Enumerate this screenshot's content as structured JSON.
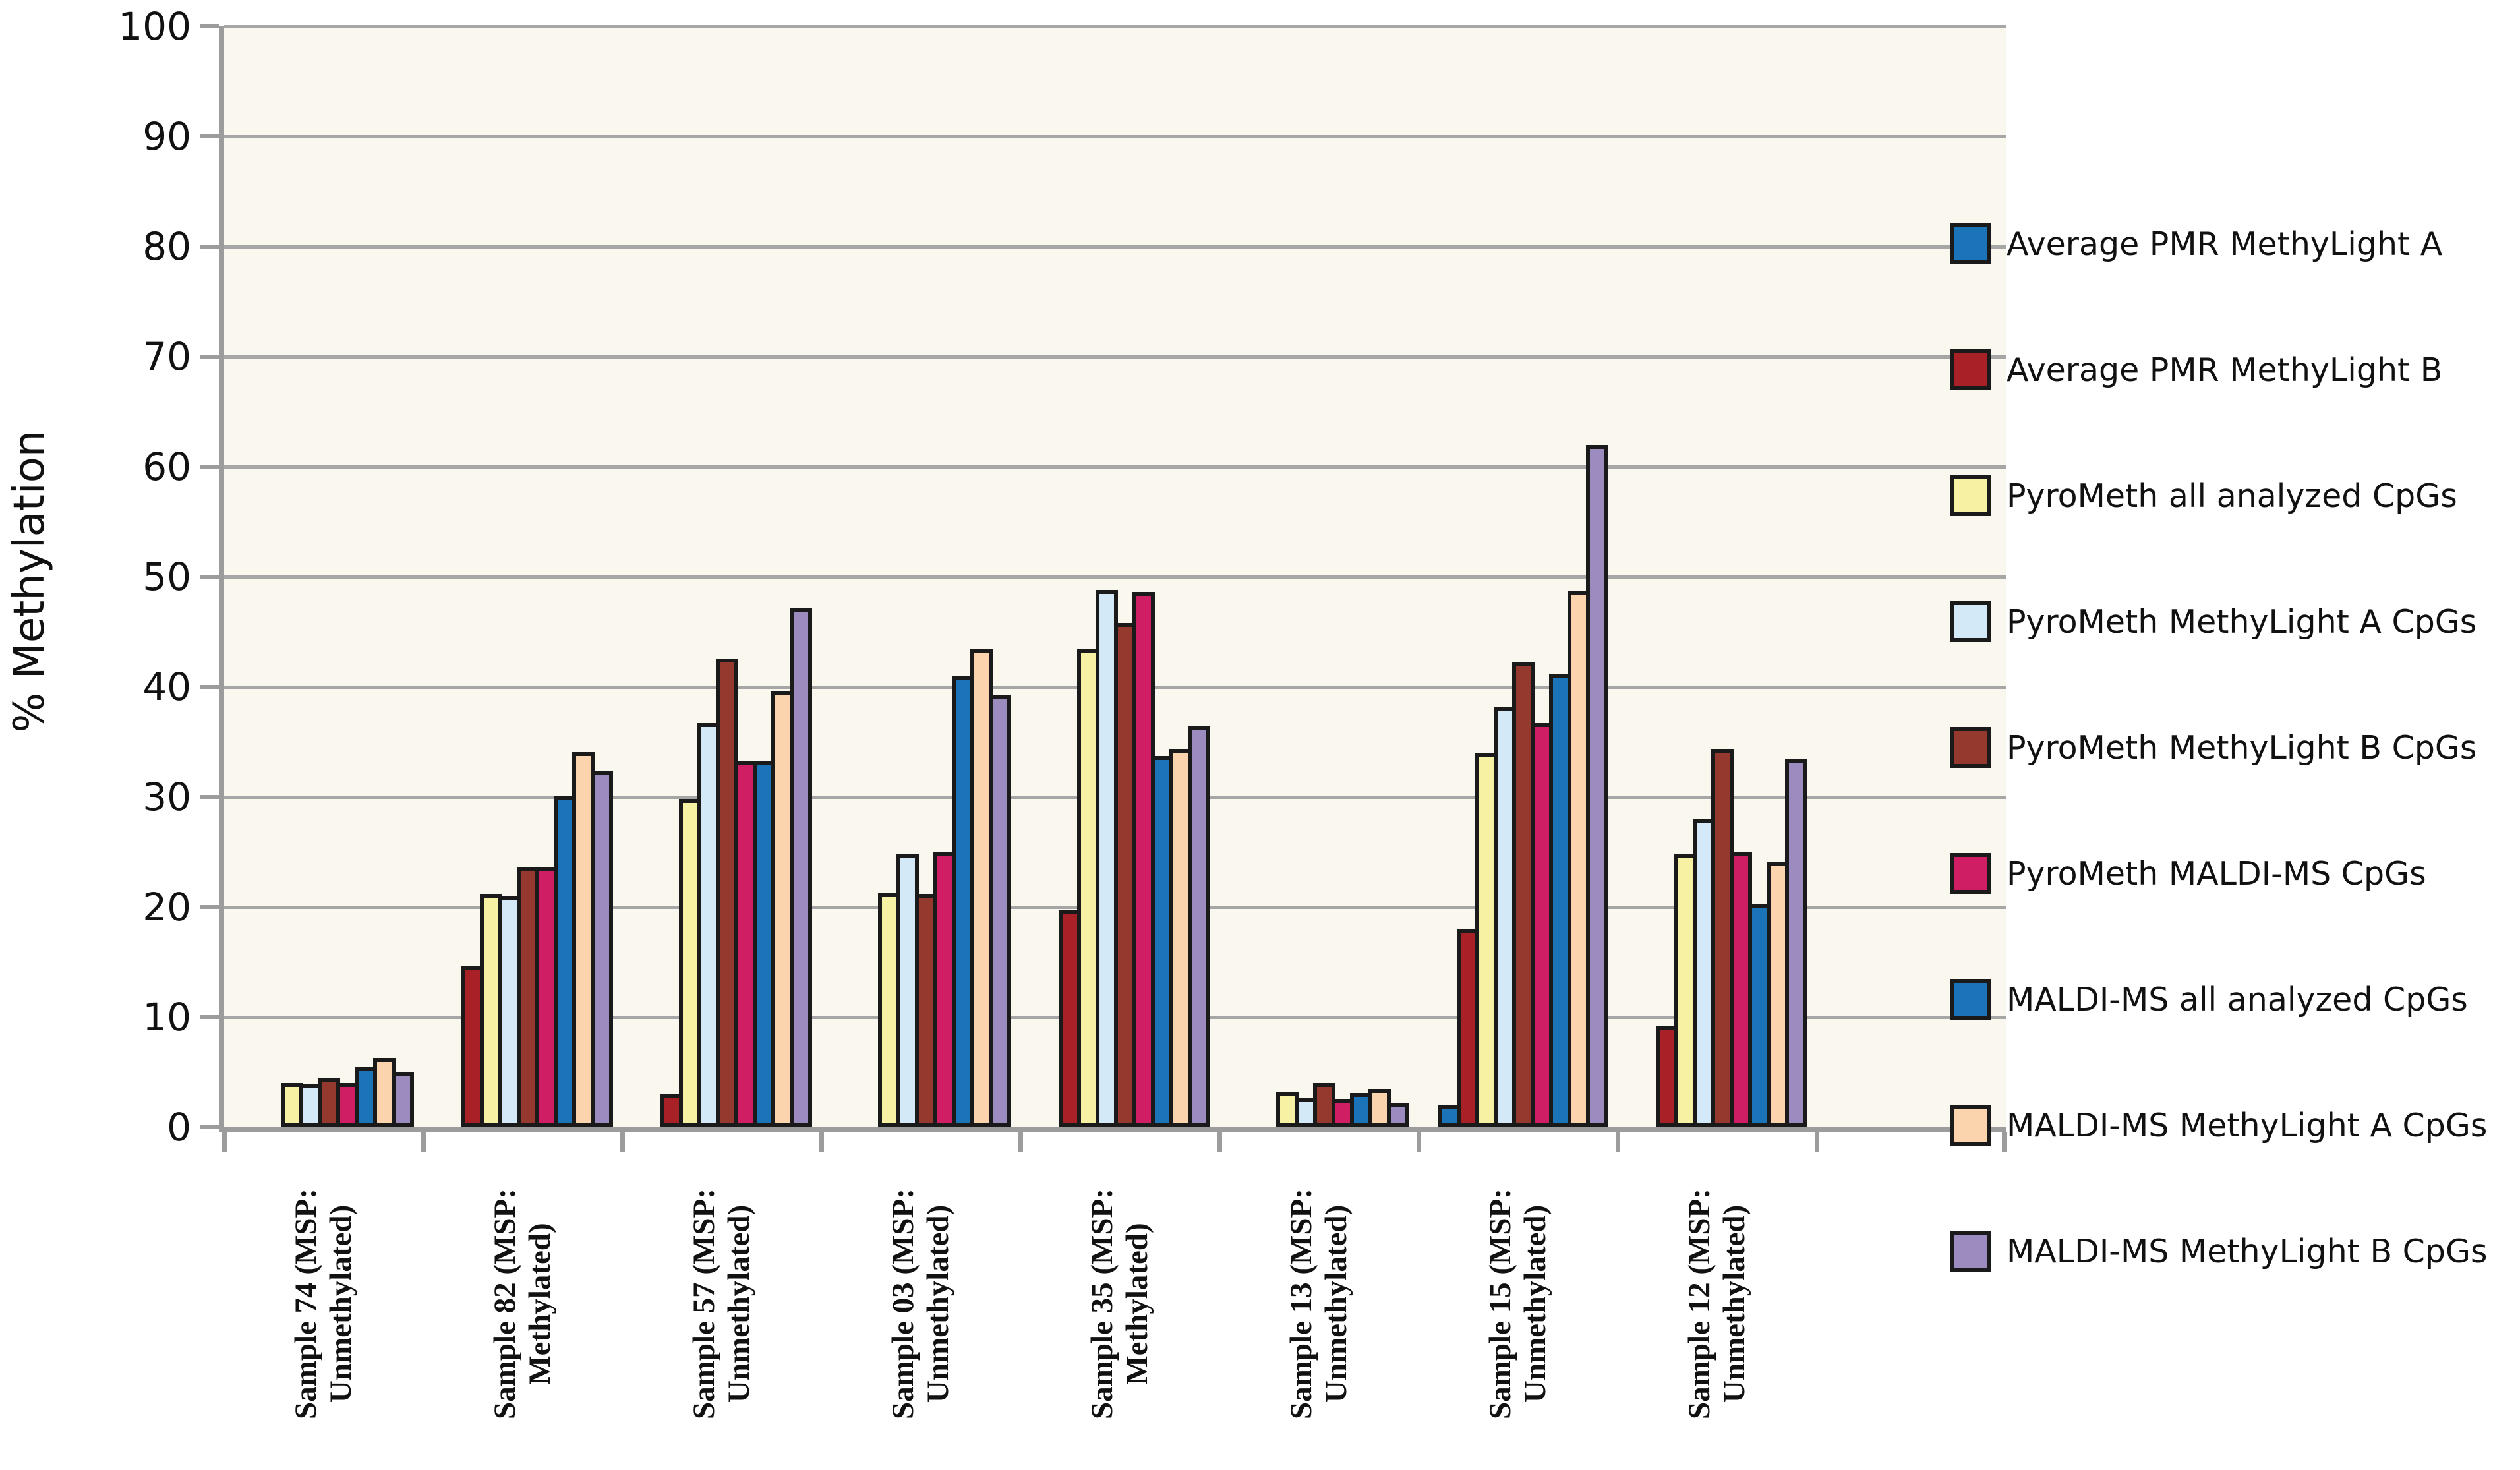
{
  "figure": {
    "y_axis_title": "% Methylation"
  },
  "chart_data": {
    "type": "bar",
    "title": "",
    "xlabel": "",
    "ylabel": "% Methylation",
    "ylim": [
      0,
      100
    ],
    "ytick_step": 10,
    "grid": "horizontal",
    "legend_position": "right",
    "plot_background": "#FAF7EF",
    "grid_color": "#A6A6A6",
    "axis_color": "#9C9C9C",
    "bar_border_color": "#1A1A1A",
    "categories": [
      "Sample 74 (MSP:\nUnmethylated)",
      "Sample 82 (MSP:\nMethylated)",
      "Sample 57 (MSP:\nUnmethylated)",
      "Sample 03 (MSP:\nUnmethylated)",
      "Sample 35 (MSP:\nMethylated)",
      "Sample 13 (MSP:\nUnmethylated)",
      "Sample 15 (MSP:\nUnmethylated)",
      "Sample 12 (MSP:\nUnmethylated)"
    ],
    "series": [
      {
        "name": "Average PMR MethyLight A",
        "color": "#1B73B8",
        "values": [
          0,
          0,
          0,
          0,
          0,
          0,
          2.0,
          0
        ]
      },
      {
        "name": "Average PMR MethyLight B",
        "color": "#A82126",
        "values": [
          0,
          14.6,
          3.0,
          0,
          19.7,
          0,
          18.0,
          9.2
        ]
      },
      {
        "name": "PyroMeth all analyzed CpGs",
        "color": "#F7F1A3",
        "values": [
          4.0,
          21.2,
          29.8,
          21.3,
          43.5,
          3.2,
          34.0,
          24.8
        ]
      },
      {
        "name": "PyroMeth MethyLight A CpGs",
        "color": "#D3E9F8",
        "values": [
          3.9,
          21.0,
          36.7,
          24.8,
          48.8,
          2.7,
          38.2,
          28.0
        ]
      },
      {
        "name": "PyroMeth MethyLight B CpGs",
        "color": "#95392F",
        "values": [
          4.5,
          23.6,
          42.6,
          21.2,
          45.8,
          4.0,
          42.3,
          34.4
        ]
      },
      {
        "name": "PyroMeth MALDI-MS CpGs",
        "color": "#CF1E63",
        "values": [
          4.0,
          23.6,
          33.3,
          25.0,
          48.6,
          2.6,
          36.7,
          25.0
        ]
      },
      {
        "name": "MALDI-MS all analyzed CpGs",
        "color": "#1B73B8",
        "values": [
          5.5,
          30.1,
          33.3,
          41.0,
          33.7,
          3.1,
          41.2,
          20.3
        ]
      },
      {
        "name": "MALDI-MS MethyLight A CpGs",
        "color": "#FBD3AD",
        "values": [
          6.3,
          34.1,
          39.6,
          43.5,
          34.4,
          3.5,
          48.7,
          24.1
        ]
      },
      {
        "name": "MALDI-MS MethyLight B CpGs",
        "color": "#9C8BBE",
        "values": [
          5.0,
          32.4,
          47.2,
          39.2,
          36.4,
          2.2,
          62.0,
          33.5
        ]
      }
    ]
  }
}
